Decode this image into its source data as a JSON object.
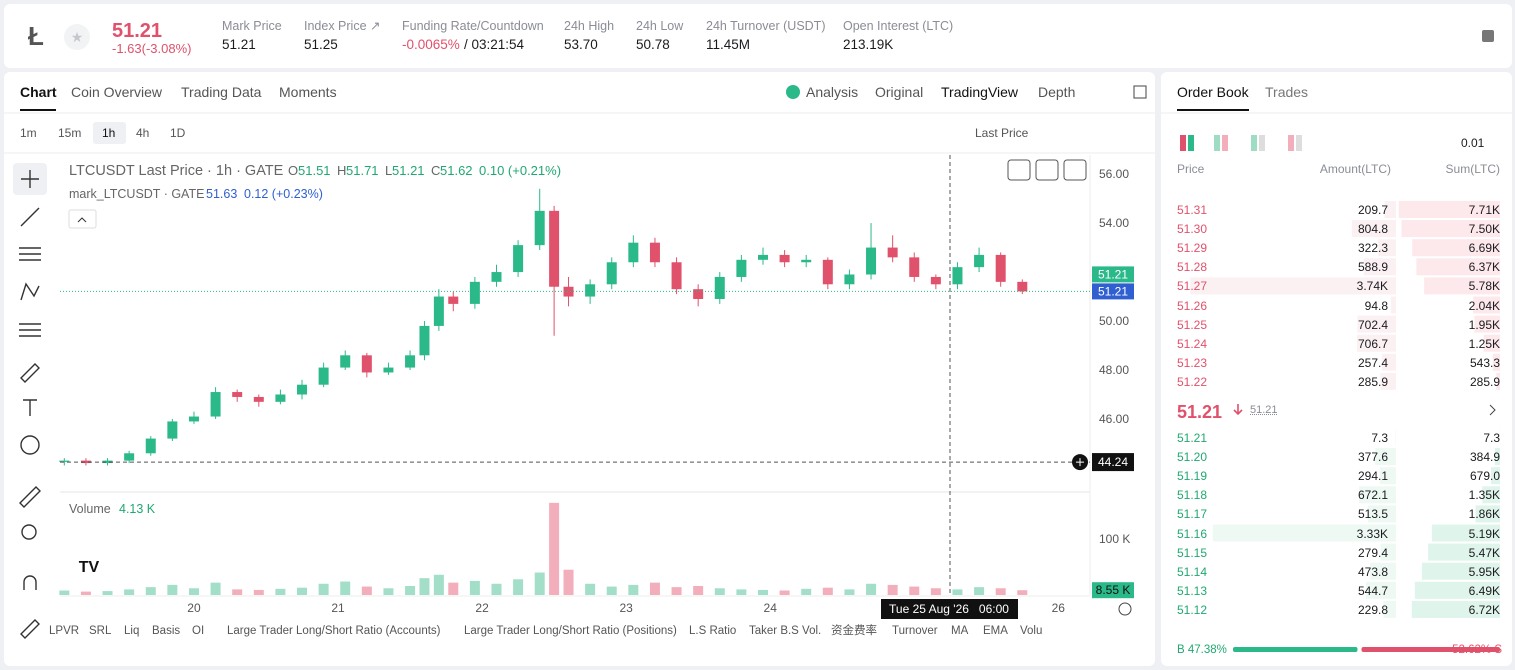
{
  "header": {
    "price": "51.21",
    "change": "-1.63(-3.08%)",
    "stats": [
      {
        "label": "Mark Price",
        "value": "51.21"
      },
      {
        "label": "Index Price ↗",
        "value": "51.25"
      },
      {
        "label": "Funding Rate/Countdown",
        "value": "-0.0065%",
        "extra": "/ 03:21:54"
      },
      {
        "label": "24h High",
        "value": "53.70"
      },
      {
        "label": "24h Low",
        "value": "50.78"
      },
      {
        "label": "24h Turnover (USDT)",
        "value": "11.45M"
      },
      {
        "label": "Open Interest (LTC)",
        "value": "213.19K"
      }
    ]
  },
  "chart_panel": {
    "tabs": [
      "Chart",
      "Coin Overview",
      "Trading Data",
      "Moments"
    ],
    "views": [
      "Analysis",
      "Original",
      "TradingView",
      "Depth"
    ],
    "intervals": [
      "1m",
      "15m",
      "1h",
      "4h",
      "1D"
    ],
    "price_type": "Last Price",
    "legend": {
      "title": "LTCUSDT Last Price · 1h · GATE",
      "ohlc": [
        {
          "k": "O",
          "v": "51.51"
        },
        {
          "k": "H",
          "v": "51.71"
        },
        {
          "k": "L",
          "v": "51.21"
        },
        {
          "k": "C",
          "v": "51.62"
        }
      ],
      "change": "0.10 (+0.21%)",
      "mark_title": "mark_LTCUSDT · GATE",
      "mark_value": "51.63",
      "mark_change": "0.12 (+0.23%)"
    },
    "volume_label": "Volume",
    "volume_value": "4.13 K",
    "volume_tag": "8.55 K",
    "crosshair_time": "Tue 25 Aug '26   06:00",
    "indicators": [
      "LPVR",
      "SRL",
      "Liq",
      "Basis",
      "OI",
      "Large Trader Long/Short Ratio (Accounts)",
      "Large Trader Long/Short Ratio (Positions)",
      "L.S Ratio",
      "Taker B.S Vol.",
      "资金费率",
      "Turnover",
      "MA",
      "EMA",
      "Volu"
    ]
  },
  "chart_data": {
    "type": "candlestick",
    "x": [
      19.1,
      19.25,
      19.4,
      19.55,
      19.7,
      19.85,
      20.0,
      20.15,
      20.3,
      20.45,
      20.6,
      20.75,
      20.9,
      21.05,
      21.2,
      21.35,
      21.5,
      21.6,
      21.7,
      21.8,
      21.95,
      22.1,
      22.25,
      22.4,
      22.5,
      22.6,
      22.75,
      22.9,
      23.05,
      23.2,
      23.35,
      23.5,
      23.65,
      23.8,
      23.95,
      24.1,
      24.25,
      24.4,
      24.55,
      24.7,
      24.85,
      25.0,
      25.15,
      25.3,
      25.45,
      25.6,
      25.75
    ],
    "open": [
      44.25,
      44.3,
      44.2,
      44.3,
      44.6,
      45.2,
      45.9,
      46.1,
      47.1,
      46.9,
      46.7,
      47.0,
      47.4,
      48.1,
      48.6,
      47.9,
      48.1,
      48.6,
      49.8,
      51.0,
      50.7,
      51.6,
      52.0,
      53.1,
      54.5,
      51.4,
      51.0,
      51.5,
      52.4,
      53.2,
      52.4,
      51.3,
      50.9,
      51.8,
      52.5,
      52.7,
      52.4,
      52.5,
      51.5,
      51.9,
      53.0,
      52.6,
      51.8,
      51.5,
      52.2,
      52.7,
      51.6
    ],
    "high": [
      44.4,
      44.4,
      44.4,
      44.7,
      45.3,
      46.0,
      46.3,
      47.3,
      47.2,
      47.0,
      47.2,
      47.6,
      48.3,
      48.8,
      48.7,
      48.3,
      48.8,
      50.0,
      51.3,
      51.2,
      51.8,
      52.3,
      53.3,
      55.4,
      54.7,
      51.8,
      51.7,
      52.6,
      53.5,
      53.4,
      52.6,
      51.5,
      52.0,
      52.7,
      53.0,
      52.9,
      52.7,
      52.6,
      52.1,
      54.0,
      53.5,
      52.8,
      51.9,
      52.4,
      53.0,
      52.8,
      51.7
    ],
    "low": [
      44.1,
      44.1,
      44.1,
      44.2,
      44.5,
      45.1,
      45.8,
      46.0,
      46.7,
      46.5,
      46.6,
      46.8,
      47.3,
      48.0,
      47.7,
      47.8,
      48.0,
      48.4,
      49.6,
      50.4,
      50.5,
      51.4,
      51.8,
      52.9,
      49.4,
      50.6,
      50.7,
      51.3,
      52.2,
      52.2,
      51.1,
      50.6,
      50.7,
      51.6,
      52.3,
      52.2,
      52.2,
      51.3,
      51.3,
      51.7,
      52.4,
      51.6,
      51.3,
      51.3,
      52.0,
      51.4,
      51.1
    ],
    "close": [
      44.3,
      44.2,
      44.3,
      44.6,
      45.2,
      45.9,
      46.1,
      47.1,
      46.9,
      46.7,
      47.0,
      47.4,
      48.1,
      48.6,
      47.9,
      48.1,
      48.6,
      49.8,
      51.0,
      50.7,
      51.6,
      52.0,
      53.1,
      54.5,
      51.4,
      51.0,
      51.5,
      52.4,
      53.2,
      52.4,
      51.3,
      50.9,
      51.8,
      52.5,
      52.7,
      52.4,
      52.5,
      51.5,
      51.9,
      53.0,
      52.6,
      51.8,
      51.5,
      52.2,
      52.7,
      51.6,
      51.21
    ],
    "volume": [
      8,
      6,
      7,
      10,
      14,
      18,
      12,
      22,
      10,
      9,
      11,
      13,
      20,
      24,
      15,
      12,
      16,
      30,
      36,
      22,
      25,
      20,
      28,
      40,
      164,
      45,
      20,
      15,
      18,
      22,
      14,
      16,
      12,
      10,
      9,
      8,
      11,
      13,
      10,
      20,
      18,
      15,
      12,
      10,
      14,
      12,
      8.55
    ],
    "up_color": "#2bb989",
    "down_color": "#e0516b",
    "up_volume_color": "#a3dfc8",
    "down_volume_color": "#f2aebb",
    "xlim": [
      19.07,
      26.22
    ],
    "xticks": [
      20,
      21,
      22,
      23,
      24,
      26
    ],
    "ylim": [
      43.1,
      56.78
    ],
    "yticks": [
      {
        "value": 46,
        "label": "46.00"
      },
      {
        "value": 48,
        "label": "48.00"
      },
      {
        "value": 50,
        "label": "50.00"
      },
      {
        "value": 54,
        "label": "54.00"
      },
      {
        "value": 56,
        "label": "56.00"
      }
    ],
    "volume_ylim": [
      0,
      178
    ],
    "volume_yticks": [
      {
        "value": 100,
        "label": "100 K"
      }
    ],
    "last_price_tag": 51.21,
    "mark_price_tag": 51.21,
    "crosshair_price": 44.24
  },
  "order_book": {
    "tabs": [
      "Order Book",
      "Trades"
    ],
    "precision": "0.01",
    "columns": [
      "Price",
      "Amount(LTC)",
      "Sum(LTC)"
    ],
    "asks": [
      {
        "price": "51.31",
        "amount": 209.7,
        "sum": {
          "value": 7710,
          "label": "7.71K"
        }
      },
      {
        "price": "51.30",
        "amount": 804.8,
        "sum": {
          "value": 7500,
          "label": "7.50K"
        }
      },
      {
        "price": "51.29",
        "amount": 322.3,
        "sum": {
          "value": 6690,
          "label": "6.69K"
        }
      },
      {
        "price": "51.28",
        "amount": 588.9,
        "sum": {
          "value": 6370,
          "label": "6.37K"
        }
      },
      {
        "price": "51.27",
        "amount": {
          "value": 3740,
          "label": "3.74K"
        },
        "sum": {
          "value": 5780,
          "label": "5.78K"
        }
      },
      {
        "price": "51.26",
        "amount": 94.8,
        "sum": {
          "value": 2040,
          "label": "2.04K"
        }
      },
      {
        "price": "51.25",
        "amount": 702.4,
        "sum": {
          "value": 1950,
          "label": "1.95K"
        }
      },
      {
        "price": "51.24",
        "amount": 706.7,
        "sum": {
          "value": 1250,
          "label": "1.25K"
        }
      },
      {
        "price": "51.23",
        "amount": 257.4,
        "sum": 543.3
      },
      {
        "price": "51.22",
        "amount": 285.9,
        "sum": 285.9
      }
    ],
    "mid_price": "51.21",
    "mid_mark": "51.21",
    "bids": [
      {
        "price": "51.21",
        "amount": 7.3,
        "sum": 7.3
      },
      {
        "price": "51.20",
        "amount": 377.6,
        "sum": 384.9
      },
      {
        "price": "51.19",
        "amount": 294.1,
        "sum": {
          "value": 679,
          "label": "679.0"
        }
      },
      {
        "price": "51.18",
        "amount": 672.1,
        "sum": {
          "value": 1350,
          "label": "1.35K"
        }
      },
      {
        "price": "51.17",
        "amount": 513.5,
        "sum": {
          "value": 1860,
          "label": "1.86K"
        }
      },
      {
        "price": "51.16",
        "amount": {
          "value": 3330,
          "label": "3.33K"
        },
        "sum": {
          "value": 5190,
          "label": "5.19K"
        }
      },
      {
        "price": "51.15",
        "amount": 279.4,
        "sum": {
          "value": 5470,
          "label": "5.47K"
        }
      },
      {
        "price": "51.14",
        "amount": 473.8,
        "sum": {
          "value": 5950,
          "label": "5.95K"
        }
      },
      {
        "price": "51.13",
        "amount": 544.7,
        "sum": {
          "value": 6490,
          "label": "6.49K"
        }
      },
      {
        "price": "51.12",
        "amount": 229.8,
        "sum": {
          "value": 6720,
          "label": "6.72K"
        }
      }
    ],
    "buy_ratio": {
      "value": 47.38,
      "label": "B 47.38%"
    },
    "sell_ratio": {
      "value": 52.62,
      "label": "52.62% S"
    }
  }
}
